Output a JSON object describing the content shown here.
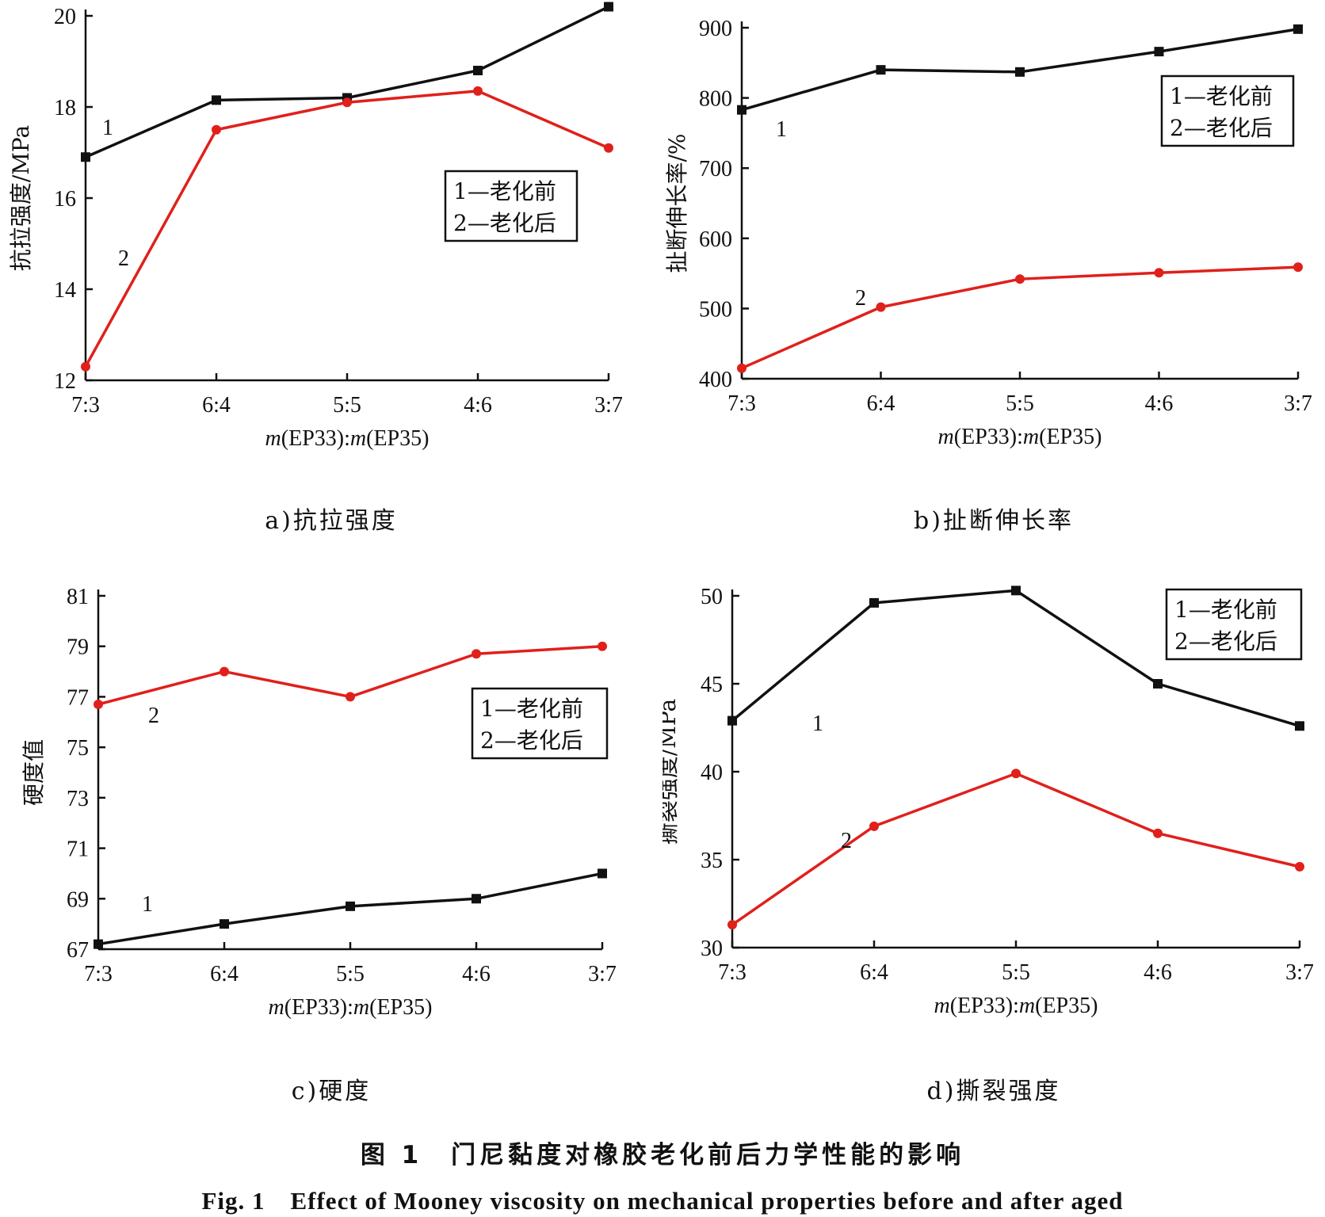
{
  "figure": {
    "caption_cn": "图 1　门尼黏度对橡胶老化前后力学性能的影响",
    "caption_en": "Fig. 1　Effect of Mooney viscosity on mechanical properties before and after aged"
  },
  "colors": {
    "series1": "#111111",
    "series2": "#e0201b"
  },
  "chart_data": [
    {
      "type": "line",
      "panel_caption": "a)抗拉强度",
      "categories": [
        "7:3",
        "6:4",
        "5:5",
        "4:6",
        "3:7"
      ],
      "xlabel_prefix": "m",
      "xlabel_mid": "(EP33):",
      "xlabel_prefix2": "m",
      "xlabel_suffix": "(EP35)",
      "ylabel": "抗拉强度/MPa",
      "ylim": [
        12,
        20
      ],
      "yticks": [
        12,
        14,
        16,
        18,
        20
      ],
      "legend": [
        "1—老化前",
        "2—老化后"
      ],
      "legend_position": "center-right",
      "series": [
        {
          "name": "1",
          "values": [
            16.9,
            18.15,
            18.2,
            18.8,
            20.2
          ]
        },
        {
          "name": "2",
          "values": [
            12.3,
            17.5,
            18.1,
            18.35,
            17.1
          ]
        }
      ]
    },
    {
      "type": "line",
      "panel_caption": "b)扯断伸长率",
      "categories": [
        "7:3",
        "6:4",
        "5:5",
        "4:6",
        "3:7"
      ],
      "xlabel_prefix": "m",
      "xlabel_mid": "(EP33):",
      "xlabel_prefix2": "m",
      "xlabel_suffix": "(EP35)",
      "ylabel": "扯断伸长率/%",
      "ylim": [
        400,
        900
      ],
      "yticks": [
        400,
        500,
        600,
        700,
        800,
        900
      ],
      "legend": [
        "1—老化前",
        "2—老化后"
      ],
      "legend_position": "top-right",
      "series": [
        {
          "name": "1",
          "values": [
            783,
            840,
            837,
            866,
            898
          ]
        },
        {
          "name": "2",
          "values": [
            415,
            502,
            542,
            551,
            559
          ]
        }
      ]
    },
    {
      "type": "line",
      "panel_caption": "c)硬度",
      "categories": [
        "7:3",
        "6:4",
        "5:5",
        "4:6",
        "3:7"
      ],
      "xlabel_prefix": "m",
      "xlabel_mid": "(EP33):",
      "xlabel_prefix2": "m",
      "xlabel_suffix": "(EP35)",
      "ylabel": "硬度值",
      "ylim": [
        67,
        81
      ],
      "yticks": [
        67,
        69,
        71,
        73,
        75,
        77,
        79,
        81
      ],
      "legend": [
        "1—老化前",
        "2—老化后"
      ],
      "legend_position": "center-right",
      "series": [
        {
          "name": "1",
          "values": [
            67.2,
            68.0,
            68.7,
            69.0,
            70.0
          ]
        },
        {
          "name": "2",
          "values": [
            76.7,
            78.0,
            77.0,
            78.7,
            79.0
          ]
        }
      ]
    },
    {
      "type": "line",
      "panel_caption": "d)撕裂强度",
      "categories": [
        "7:3",
        "6:4",
        "5:5",
        "4:6",
        "3:7"
      ],
      "xlabel_prefix": "m",
      "xlabel_mid": "(EP33):",
      "xlabel_prefix2": "m",
      "xlabel_suffix": "(EP35)",
      "ylabel": "撕裂强度/MPa",
      "ylim": [
        30,
        50
      ],
      "yticks": [
        30,
        35,
        40,
        45,
        50
      ],
      "legend": [
        "1—老化前",
        "2—老化后"
      ],
      "legend_position": "top-right",
      "series": [
        {
          "name": "1",
          "values": [
            42.9,
            49.6,
            50.3,
            45.0,
            42.6
          ]
        },
        {
          "name": "2",
          "values": [
            31.3,
            36.9,
            39.9,
            36.5,
            34.6
          ]
        }
      ]
    }
  ]
}
